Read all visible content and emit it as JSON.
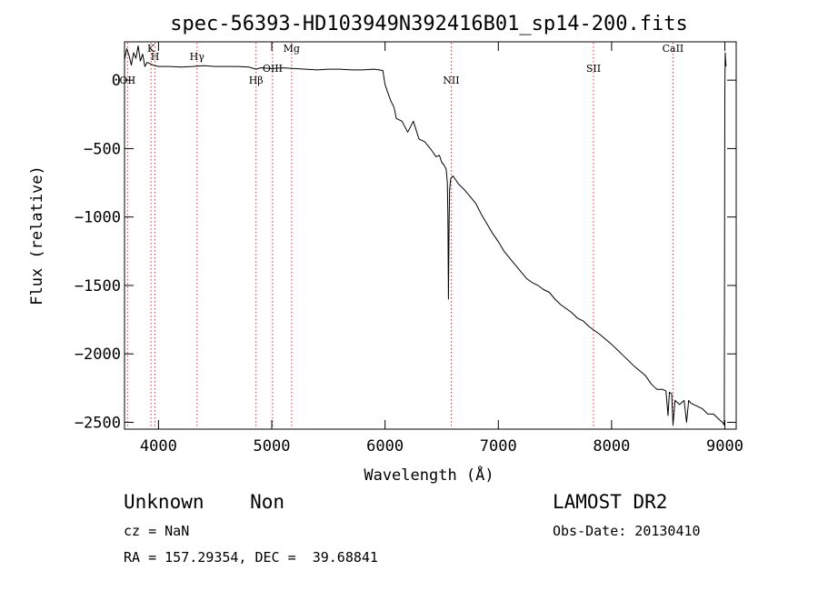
{
  "chart_data": {
    "type": "line",
    "title": "spec-56393-HD103949N392416B01_sp14-200.fits",
    "xlabel": "Wavelength (Å)",
    "ylabel": "Flux (relative)",
    "xlim": [
      3700,
      9100
    ],
    "ylim": [
      -2550,
      280
    ],
    "x_ticks": [
      4000,
      5000,
      6000,
      7000,
      8000,
      9000
    ],
    "y_ticks": [
      0,
      -500,
      -1000,
      -1500,
      -2000,
      -2500
    ],
    "grid": false,
    "series": [
      {
        "x": [
          3700,
          3720,
          3740,
          3760,
          3780,
          3800,
          3820,
          3840,
          3860,
          3880,
          3900,
          3950,
          4000,
          4100,
          4200,
          4300,
          4400,
          4500,
          4600,
          4700,
          4800,
          4861,
          4900,
          5000,
          5100,
          5200,
          5300,
          5400,
          5500,
          5600,
          5700,
          5800,
          5900,
          5950,
          5980,
          6000,
          6020,
          6050,
          6080,
          6100,
          6150,
          6200,
          6250,
          6300,
          6350,
          6400,
          6450,
          6480,
          6500,
          6520,
          6540,
          6550,
          6555,
          6560,
          6565,
          6570,
          6580,
          6600,
          6650,
          6700,
          6750,
          6800,
          6850,
          6900,
          6950,
          7000,
          7050,
          7100,
          7150,
          7200,
          7250,
          7300,
          7350,
          7400,
          7450,
          7500,
          7550,
          7600,
          7650,
          7700,
          7750,
          7800,
          7850,
          7900,
          8000,
          8100,
          8200,
          8300,
          8350,
          8400,
          8450,
          8480,
          8498,
          8510,
          8530,
          8542,
          8560,
          8600,
          8640,
          8662,
          8680,
          8700,
          8750,
          8800,
          8850,
          8900,
          8950,
          8980,
          8995,
          9000,
          9003,
          9010
        ],
        "y": [
          150,
          230,
          180,
          110,
          200,
          160,
          250,
          140,
          190,
          100,
          130,
          110,
          100,
          100,
          95,
          100,
          105,
          100,
          100,
          100,
          95,
          80,
          90,
          85,
          90,
          85,
          80,
          75,
          80,
          80,
          75,
          75,
          80,
          75,
          70,
          -30,
          -80,
          -150,
          -200,
          -280,
          -300,
          -380,
          -300,
          -430,
          -450,
          -500,
          -560,
          -550,
          -600,
          -620,
          -650,
          -750,
          -1000,
          -1600,
          -1050,
          -800,
          -720,
          -700,
          -760,
          -800,
          -850,
          -900,
          -980,
          -1050,
          -1120,
          -1180,
          -1250,
          -1300,
          -1350,
          -1400,
          -1450,
          -1480,
          -1500,
          -1530,
          -1550,
          -1600,
          -1640,
          -1670,
          -1700,
          -1740,
          -1760,
          -1800,
          -1830,
          -1860,
          -1930,
          -2010,
          -2090,
          -2160,
          -2220,
          -2260,
          -2260,
          -2270,
          -2450,
          -2280,
          -2290,
          -2520,
          -2340,
          -2370,
          -2340,
          -2500,
          -2340,
          -2360,
          -2380,
          -2400,
          -2440,
          -2440,
          -2480,
          -2500,
          -2520,
          -100,
          200,
          100
        ]
      }
    ],
    "line_markers": [
      {
        "label": "OII",
        "wavelength": 3727,
        "label_level": 0
      },
      {
        "label": "K",
        "wavelength": 3934,
        "label_level": 3
      },
      {
        "label": "H",
        "wavelength": 3969,
        "label_level": 2
      },
      {
        "label": "Hγ",
        "wavelength": 4340,
        "label_level": 2
      },
      {
        "label": "Hβ",
        "wavelength": 4861,
        "label_level": 0
      },
      {
        "label": "OIII",
        "wavelength": 5007,
        "label_level": 1
      },
      {
        "label": "Mg",
        "wavelength": 5175,
        "label_level": 3
      },
      {
        "label": "NII",
        "wavelength": 6584,
        "label_level": 0
      },
      {
        "label": "SII",
        "wavelength": 7840,
        "label_level": 1
      },
      {
        "label": "CaII",
        "wavelength": 8542,
        "label_level": 3
      }
    ]
  },
  "info": {
    "class_text": "Unknown    Non",
    "survey": "LAMOST DR2",
    "cz": "cz = NaN",
    "obs_date": "Obs-Date: 20130410",
    "coords": "RA = 157.29354, DEC =  39.68841"
  },
  "colors": {
    "line": "#000000",
    "marker": "#e03030"
  }
}
